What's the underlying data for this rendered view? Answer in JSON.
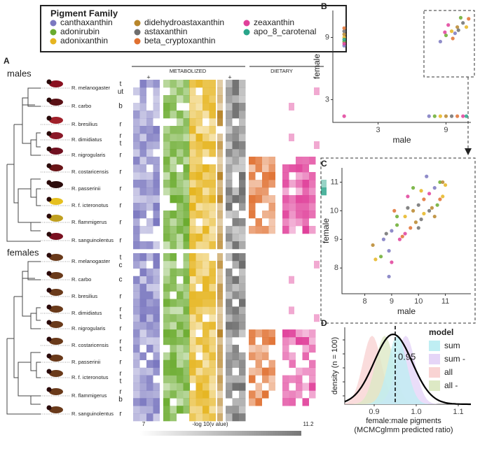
{
  "legend": {
    "title": "Pigment Family",
    "entries": [
      {
        "name": "canthaxanthin",
        "color": "#7b78c0"
      },
      {
        "name": "adonirubin",
        "color": "#6aab2e"
      },
      {
        "name": "adonixanthin",
        "color": "#e6b520"
      },
      {
        "name": "didehydroastaxanthin",
        "color": "#b8862b"
      },
      {
        "name": "astaxanthin",
        "color": "#6e6e6e"
      },
      {
        "name": "beta_cryptoxanthin",
        "color": "#e07030"
      },
      {
        "name": "zeaxanthin",
        "color": "#e0409a"
      },
      {
        "name": "apo_8_carotenal",
        "color": "#2aa58a"
      }
    ]
  },
  "panel_a": {
    "label": "A",
    "groups": [
      "males",
      "females"
    ],
    "column_groups": [
      "METABOLIZED",
      "DIETARY"
    ],
    "markers": [
      "+",
      "+"
    ],
    "scale": {
      "min": "7",
      "label": "-log 10(v alue)",
      "max": "11.2"
    },
    "males": [
      {
        "species": "R. melanogaster",
        "tissues": [
          "t",
          "ut"
        ]
      },
      {
        "species": "R. carbo",
        "tissues": [
          "b"
        ]
      },
      {
        "species": "R. bresilius",
        "tissues": [
          "r"
        ]
      },
      {
        "species": "R. dimidiatus",
        "tissues": [
          "r",
          "t"
        ]
      },
      {
        "species": "R. nigrogularis",
        "tissues": [
          "r"
        ]
      },
      {
        "species": "R. costaricensis",
        "tissues": [
          "r"
        ]
      },
      {
        "species": "R. passerinii",
        "tissues": [
          "r"
        ]
      },
      {
        "species": "R. f. icteronotus",
        "tissues": [
          "r"
        ]
      },
      {
        "species": "R. flammigerus",
        "tissues": [
          "r"
        ]
      },
      {
        "species": "R. sanguinolentus",
        "tissues": [
          "r"
        ]
      }
    ],
    "females": [
      {
        "species": "R. melanogaster",
        "tissues": [
          "t",
          "c"
        ]
      },
      {
        "species": "R. carbo",
        "tissues": [
          "c"
        ]
      },
      {
        "species": "R. bresilius",
        "tissues": [
          "r"
        ]
      },
      {
        "species": "R. dimidiatus",
        "tissues": [
          "r",
          "t"
        ]
      },
      {
        "species": "R. nigrogularis",
        "tissues": [
          "r"
        ]
      },
      {
        "species": "R. costaricensis",
        "tissues": [
          "r",
          "t"
        ]
      },
      {
        "species": "R. passerinii",
        "tissues": [
          "r"
        ]
      },
      {
        "species": "R. f. icteronotus",
        "tissues": [
          "r",
          "t"
        ]
      },
      {
        "species": "R. flammigerus",
        "tissues": [
          "r",
          "b"
        ]
      },
      {
        "species": "R. sanguinolentus",
        "tissues": [
          "r"
        ]
      }
    ]
  },
  "chart_data": [
    {
      "type": "scatter",
      "label": "B",
      "x_label": "male",
      "y_label": "female",
      "xlim": [
        -1,
        11.2
      ],
      "ylim": [
        0.8,
        11.6
      ],
      "xticks": [
        3,
        9
      ],
      "yticks": [
        3,
        9
      ],
      "x": [
        0,
        0,
        0,
        0,
        0,
        0,
        0,
        0,
        0,
        7.5,
        8,
        8.5,
        9,
        9.5,
        10,
        10.5,
        10.8,
        8.5,
        9,
        9.5,
        10,
        10.5,
        11,
        9.2,
        9.8,
        10.3,
        10.8,
        9.6,
        10.1,
        8.9
      ],
      "values": [
        8.2,
        8.6,
        9,
        9.3,
        9.6,
        9.9,
        8.4,
        8.8,
        1.4,
        1.4,
        1.4,
        1.4,
        1.4,
        1.4,
        1.4,
        1.4,
        1.4,
        8.6,
        9.2,
        9.6,
        10,
        10.4,
        10.8,
        10.2,
        9.4,
        10.9,
        10,
        8.9,
        9.7,
        9.5
      ],
      "colors": [
        "#7b78c0",
        "#6aab2e",
        "#e6b520",
        "#b8862b",
        "#6e6e6e",
        "#e07030",
        "#e0409a",
        "#2aa58a",
        "#e0409a",
        "#7b78c0",
        "#6aab2e",
        "#e6b520",
        "#b8862b",
        "#6e6e6e",
        "#e07030",
        "#e0409a",
        "#2aa58a",
        "#7b78c0",
        "#6aab2e",
        "#e6b520",
        "#b8862b",
        "#6e6e6e",
        "#e07030",
        "#e0409a",
        "#7b78c0",
        "#6aab2e",
        "#e6b520",
        "#e07030",
        "#6e6e6e",
        "#e0409a"
      ]
    },
    {
      "type": "scatter",
      "label": "C",
      "x_label": "male",
      "y_label": "female",
      "xlim": [
        7.15,
        11.95
      ],
      "ylim": [
        7.1,
        11.5
      ],
      "xticks": [
        8,
        9,
        10,
        11
      ],
      "yticks": [
        8,
        9,
        10,
        11
      ],
      "x": [
        9,
        9.2,
        9.5,
        9.8,
        10,
        10.2,
        10.4,
        10.6,
        10.8,
        10.9,
        10.5,
        10.1,
        9.7,
        9.3,
        8.9,
        8.6,
        8.4,
        8.3,
        8.8,
        9.1,
        9.6,
        10.3,
        10.7,
        11,
        10.6,
        10,
        9.4,
        9,
        8.9,
        9.8,
        10.2,
        9.9,
        10.4,
        10.8,
        9.5,
        8.7,
        9.2,
        10.1,
        10.9,
        9.6
      ],
      "values": [
        9.3,
        9.5,
        9.8,
        10,
        10.2,
        10.4,
        10.6,
        10.8,
        11,
        10.5,
        10.1,
        9.7,
        9.4,
        9,
        8.6,
        8.4,
        8.3,
        8.8,
        9.2,
        10,
        10.5,
        11.2,
        10.2,
        10.9,
        9.8,
        9.4,
        9.1,
        8.2,
        7.7,
        10.8,
        9.9,
        9.6,
        10,
        10.4,
        9.2,
        9,
        9.8,
        10.7,
        11,
        10.1
      ],
      "colors": [
        "#7b78c0",
        "#6aab2e",
        "#e6b520",
        "#b8862b",
        "#6e6e6e",
        "#e07030",
        "#e0409a",
        "#7b78c0",
        "#6aab2e",
        "#e6b520",
        "#b8862b",
        "#6e6e6e",
        "#e07030",
        "#e0409a",
        "#7b78c0",
        "#6aab2e",
        "#e6b520",
        "#b8862b",
        "#6e6e6e",
        "#e07030",
        "#e0409a",
        "#7b78c0",
        "#6aab2e",
        "#e6b520",
        "#b8862b",
        "#6e6e6e",
        "#e07030",
        "#e0409a",
        "#7b78c0",
        "#6aab2e",
        "#e6b520",
        "#b8862b",
        "#6e6e6e",
        "#e07030",
        "#e0409a",
        "#7b78c0",
        "#6aab2e",
        "#e6b520",
        "#b8862b",
        "#6e6e6e"
      ]
    },
    {
      "type": "density",
      "label": "D",
      "x_label": "female:male pigments",
      "x_label_2": "(MCMCglmm predicted ratio)",
      "y_label": "density (n = 100)",
      "xlim": [
        0.83,
        1.13
      ],
      "xticks": [
        0.9,
        {
          "value": 1,
          "label": "1.0"
        },
        1.1
      ],
      "vline": 0.95,
      "vline_label": "0.95",
      "legend": {
        "title": "model",
        "entries": [
          {
            "name": "sum",
            "color": "#bfeef3"
          },
          {
            "name": "sum -",
            "color": "#e5d5f7"
          },
          {
            "name": "all",
            "color": "#f9d3d3"
          },
          {
            "name": "all -",
            "color": "#dde9c5"
          }
        ]
      }
    }
  ]
}
